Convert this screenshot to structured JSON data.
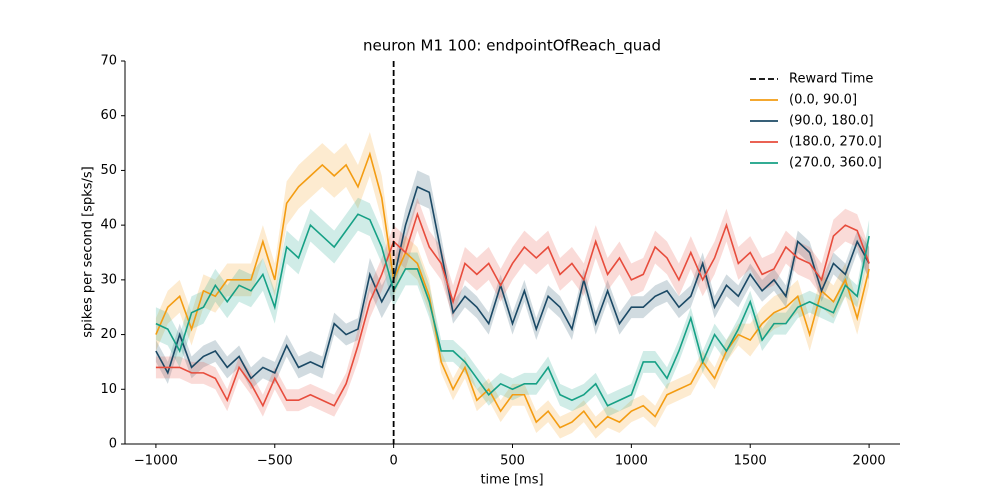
{
  "chart_data": {
    "type": "line",
    "title": "neuron M1 100: endpointOfReach_quad",
    "xlabel": "time [ms]",
    "ylabel": "spikes per second [spks/s]",
    "xlim": [
      -1130,
      2130
    ],
    "ylim": [
      0,
      70
    ],
    "xticks": [
      {
        "value": -1000,
        "label": "−1000"
      },
      {
        "value": -500,
        "label": "−500"
      },
      0,
      500,
      1000,
      1500,
      2000
    ],
    "yticks": [
      0,
      10,
      20,
      30,
      40,
      50,
      60,
      70
    ],
    "legend": "upper right",
    "reference_line": {
      "name": "Reward Time",
      "x": 0,
      "color": "#000000"
    },
    "x": [
      -1000,
      -950,
      -900,
      -850,
      -800,
      -750,
      -700,
      -650,
      -600,
      -550,
      -500,
      -450,
      -400,
      -350,
      -300,
      -250,
      -200,
      -150,
      -100,
      -50,
      0,
      50,
      100,
      150,
      200,
      250,
      300,
      350,
      400,
      450,
      500,
      550,
      600,
      650,
      700,
      750,
      800,
      850,
      900,
      950,
      1000,
      1050,
      1100,
      1150,
      1200,
      1250,
      1300,
      1350,
      1400,
      1450,
      1500,
      1550,
      1600,
      1650,
      1700,
      1750,
      1800,
      1850,
      1900,
      1950,
      2000
    ],
    "series": [
      {
        "name": "(0.0, 90.0]",
        "color": "#f39c12",
        "values": [
          20,
          25,
          27,
          21,
          28,
          27,
          30,
          30,
          30,
          37,
          30,
          44,
          47,
          49,
          51,
          49,
          51,
          47,
          53,
          45,
          30,
          35,
          33,
          27,
          15,
          10,
          14,
          8,
          10,
          6,
          9,
          9,
          4,
          6,
          3,
          4,
          6,
          3,
          5,
          4,
          6,
          7,
          5,
          9,
          10,
          11,
          15,
          12,
          17,
          20,
          19,
          22,
          24,
          25,
          27,
          20,
          28,
          26,
          30,
          23,
          32
        ],
        "errors": [
          3,
          3,
          3,
          3,
          3,
          3,
          3,
          3,
          3,
          3,
          3,
          4,
          4,
          4,
          4,
          4,
          4,
          4,
          4,
          4,
          3,
          3,
          3,
          3,
          2,
          2,
          2,
          2,
          2,
          2,
          2,
          2,
          2,
          2,
          2,
          2,
          2,
          2,
          2,
          2,
          2,
          2,
          2,
          2,
          2,
          2,
          2,
          2,
          2,
          2,
          3,
          3,
          3,
          3,
          3,
          3,
          3,
          3,
          3,
          3,
          3
        ]
      },
      {
        "name": "(90.0, 180.0]",
        "color": "#1b4965",
        "values": [
          17,
          13,
          20,
          14,
          16,
          17,
          14,
          16,
          12,
          14,
          13,
          18,
          14,
          15,
          14,
          22,
          20,
          21,
          31,
          26,
          30,
          40,
          47,
          46,
          35,
          24,
          27,
          25,
          22,
          29,
          22,
          28,
          21,
          27,
          25,
          21,
          30,
          22,
          28,
          22,
          25,
          25,
          27,
          28,
          25,
          27,
          33,
          25,
          29,
          27,
          31,
          28,
          30,
          27,
          37,
          35,
          28,
          33,
          31,
          37,
          33
        ],
        "errors": [
          2,
          2,
          2,
          2,
          2,
          2,
          2,
          2,
          2,
          2,
          2,
          2,
          2,
          2,
          2,
          2,
          2,
          2,
          3,
          3,
          3,
          3,
          3,
          3,
          3,
          2,
          2,
          2,
          2,
          2,
          2,
          2,
          2,
          2,
          2,
          2,
          2,
          2,
          2,
          2,
          2,
          2,
          2,
          2,
          2,
          2,
          2,
          2,
          2,
          2,
          2,
          2,
          2,
          2,
          2,
          2,
          2,
          2,
          2,
          2,
          3
        ]
      },
      {
        "name": "(180.0, 270.0]",
        "color": "#e74c3c",
        "values": [
          14,
          14,
          14,
          13,
          13,
          12,
          8,
          14,
          11,
          7,
          12,
          8,
          8,
          9,
          8,
          7,
          11,
          18,
          26,
          31,
          37,
          35,
          42,
          36,
          33,
          26,
          33,
          31,
          33,
          29,
          33,
          36,
          34,
          36,
          31,
          33,
          30,
          37,
          31,
          34,
          30,
          31,
          36,
          34,
          30,
          35,
          30,
          34,
          40,
          33,
          35,
          31,
          32,
          36,
          34,
          33,
          30,
          38,
          40,
          39,
          33
        ],
        "errors": [
          2,
          2,
          2,
          2,
          2,
          2,
          2,
          2,
          2,
          2,
          2,
          2,
          2,
          2,
          2,
          2,
          2,
          3,
          3,
          3,
          3,
          3,
          3,
          3,
          3,
          3,
          3,
          3,
          3,
          3,
          3,
          3,
          3,
          3,
          3,
          3,
          3,
          3,
          3,
          3,
          3,
          3,
          3,
          3,
          3,
          3,
          3,
          3,
          3,
          3,
          3,
          3,
          3,
          3,
          3,
          3,
          3,
          3,
          3,
          3,
          3
        ]
      },
      {
        "name": "(270.0, 360.0]",
        "color": "#16a085",
        "values": [
          22,
          21,
          17,
          24,
          25,
          29,
          26,
          29,
          28,
          31,
          25,
          36,
          34,
          40,
          38,
          36,
          39,
          42,
          41,
          36,
          28,
          32,
          32,
          26,
          17,
          17,
          15,
          12,
          9,
          11,
          10,
          11,
          11,
          14,
          9,
          8,
          9,
          11,
          7,
          8,
          9,
          15,
          15,
          12,
          17,
          23,
          15,
          20,
          17,
          21,
          26,
          19,
          22,
          22,
          25,
          26,
          25,
          24,
          29,
          27,
          38
        ],
        "errors": [
          3,
          3,
          3,
          3,
          3,
          3,
          3,
          3,
          3,
          3,
          3,
          3,
          3,
          3,
          3,
          3,
          3,
          3,
          3,
          3,
          3,
          3,
          3,
          3,
          2,
          2,
          2,
          2,
          2,
          2,
          2,
          2,
          2,
          2,
          2,
          2,
          2,
          2,
          2,
          2,
          2,
          2,
          2,
          2,
          2,
          2,
          2,
          2,
          2,
          2,
          2,
          2,
          2,
          2,
          2,
          2,
          2,
          2,
          2,
          2,
          3
        ]
      }
    ]
  }
}
